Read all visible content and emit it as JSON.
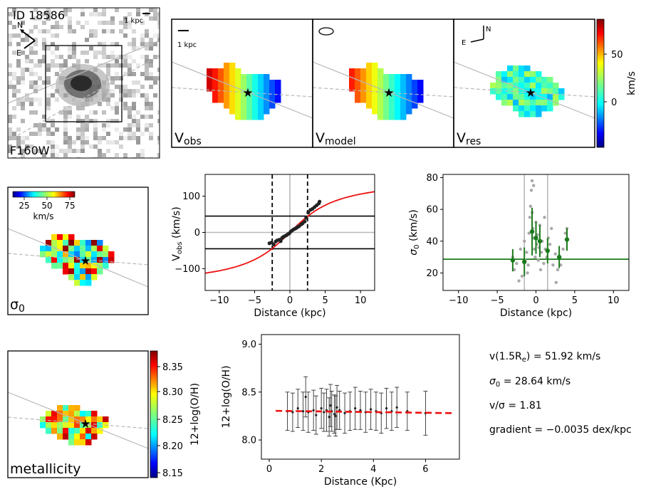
{
  "header": {
    "galaxy_id": "ID 18586",
    "filter_label": "F160W",
    "scale_label": "1 kpc",
    "compass_n": "N",
    "compass_e": "E"
  },
  "velocity_maps": {
    "obs_label_main": "V",
    "obs_label_sub": "obs",
    "model_label_main": "V",
    "model_label_sub": "model",
    "res_label_main": "V",
    "res_label_sub": "res",
    "scale_label": "1 kpc",
    "compass_n": "N",
    "compass_e": "E",
    "colorbar_unit": "km/s",
    "colorbar_ticks": [
      "50",
      "0"
    ]
  },
  "sigma_map": {
    "label_main": "σ",
    "label_sub": "0",
    "colorbar_ticks": [
      "25",
      "50",
      "75"
    ],
    "colorbar_unit": "km/s"
  },
  "metallicity_map": {
    "label": "metallicity",
    "colorbar_label": "12+log(O/H)",
    "colorbar_ticks": [
      "8.35",
      "8.30",
      "8.25",
      "8.20",
      "8.15"
    ]
  },
  "summary": {
    "v15re_main": "v(1.5R",
    "v15re_sub": "e",
    "v15re_value": ") = 51.92 km/s",
    "sigma_main": "σ",
    "sigma_sub": "0",
    "sigma_value": " = 28.64 km/s",
    "ratio": "v/σ = 1.81",
    "gradient": "gradient = −0.0035 dex/kpc"
  },
  "chart_data": [
    {
      "type": "scatter",
      "name": "rotation-curve",
      "xlabel": "Distance (kpc)",
      "ylabel_main": "V",
      "ylabel_sub": "obs",
      "ylabel_unit": " (km/s)",
      "xlim": [
        -12,
        12
      ],
      "ylim": [
        -160,
        160
      ],
      "xticks": [
        -10,
        -5,
        0,
        5,
        10
      ],
      "yticks": [
        -100,
        0,
        100
      ],
      "points": [
        [
          -2.9,
          -30
        ],
        [
          -2.6,
          -28
        ],
        [
          -2.3,
          -33
        ],
        [
          -2.0,
          -25
        ],
        [
          -1.8,
          -22
        ],
        [
          -1.5,
          -20
        ],
        [
          -1.3,
          -24
        ],
        [
          -1.1,
          -15
        ],
        [
          -0.9,
          -12
        ],
        [
          -0.7,
          -10
        ],
        [
          -0.5,
          -8
        ],
        [
          -0.3,
          -5
        ],
        [
          -0.1,
          -3
        ],
        [
          0.1,
          2
        ],
        [
          0.3,
          5
        ],
        [
          0.5,
          8
        ],
        [
          0.7,
          10
        ],
        [
          0.9,
          12
        ],
        [
          1.1,
          15
        ],
        [
          1.3,
          17
        ],
        [
          1.6,
          22
        ],
        [
          1.8,
          25
        ],
        [
          2.1,
          30
        ],
        [
          2.3,
          40
        ],
        [
          2.6,
          55
        ],
        [
          2.9,
          62
        ],
        [
          3.2,
          65
        ],
        [
          3.5,
          70
        ],
        [
          3.8,
          75
        ],
        [
          4.1,
          80
        ],
        [
          4.2,
          85
        ]
      ],
      "model_curve": {
        "vmax": 150,
        "rt": 5
      },
      "horizontal_lines": [
        45,
        -45,
        0
      ],
      "vertical_dashed": [
        -2.5,
        2.5
      ],
      "vertical_gray": [
        0
      ]
    },
    {
      "type": "scatter",
      "name": "dispersion-profile",
      "xlabel": "Distance (kpc)",
      "ylabel_main": "σ",
      "ylabel_sub": "0",
      "ylabel_unit": " (km/s)",
      "xlim": [
        -12,
        12
      ],
      "ylim": [
        9,
        82
      ],
      "xticks": [
        -10,
        -5,
        0,
        5,
        10
      ],
      "yticks": [
        20,
        40,
        60,
        80
      ],
      "mean_sigma": 28.64,
      "vertical_gray": [
        -1.5,
        1.5
      ],
      "gray_points": [
        [
          -3.0,
          30
        ],
        [
          -2.8,
          22
        ],
        [
          -2.5,
          26
        ],
        [
          -2.0,
          35
        ],
        [
          -1.8,
          18
        ],
        [
          -1.5,
          40
        ],
        [
          -1.4,
          28
        ],
        [
          -1.2,
          33
        ],
        [
          -1.0,
          25
        ],
        [
          -0.9,
          45
        ],
        [
          -0.8,
          55
        ],
        [
          -0.7,
          62
        ],
        [
          -0.6,
          72
        ],
        [
          -0.5,
          58
        ],
        [
          -0.4,
          48
        ],
        [
          -0.3,
          42
        ],
        [
          -0.2,
          35
        ],
        [
          -0.1,
          30
        ],
        [
          0.0,
          52
        ],
        [
          0.1,
          38
        ],
        [
          0.2,
          44
        ],
        [
          0.3,
          28
        ],
        [
          0.4,
          36
        ],
        [
          0.5,
          50
        ],
        [
          0.7,
          33
        ],
        [
          0.8,
          40
        ],
        [
          1.0,
          26
        ],
        [
          1.2,
          35
        ],
        [
          1.4,
          30
        ],
        [
          1.6,
          42
        ],
        [
          1.8,
          38
        ],
        [
          2.0,
          48
        ],
        [
          2.2,
          25
        ],
        [
          2.5,
          32
        ],
        [
          2.8,
          22
        ],
        [
          3.0,
          30
        ],
        [
          3.2,
          25
        ],
        [
          3.5,
          35
        ],
        [
          3.8,
          45
        ],
        [
          4.0,
          48
        ],
        [
          -0.5,
          78
        ],
        [
          -0.3,
          75
        ],
        [
          -2.2,
          15
        ],
        [
          2.6,
          14
        ],
        [
          -1.1,
          20
        ],
        [
          0.6,
          22
        ],
        [
          1.1,
          55
        ]
      ],
      "green_points": [
        {
          "x": -3.0,
          "y": 28,
          "err": 7
        },
        {
          "x": -1.5,
          "y": 27,
          "err": 9
        },
        {
          "x": -0.5,
          "y": 46,
          "err": 15
        },
        {
          "x": 0.0,
          "y": 42,
          "err": 10
        },
        {
          "x": 0.5,
          "y": 40,
          "err": 10
        },
        {
          "x": 1.5,
          "y": 34,
          "err": 8
        },
        {
          "x": 3.0,
          "y": 30,
          "err": 7
        },
        {
          "x": 4.0,
          "y": 41,
          "err": 7
        }
      ]
    },
    {
      "type": "scatter",
      "name": "metallicity-gradient",
      "xlabel": "Distance (Kpc)",
      "ylabel": "12+log(O/H)",
      "xlim": [
        -0.3,
        7.3
      ],
      "ylim": [
        7.8,
        9.1
      ],
      "xticks": [
        0,
        2,
        4,
        6
      ],
      "yticks": [
        8.0,
        8.5,
        9.0
      ],
      "ytick_labels": [
        "8.0",
        "8.5",
        "9.0"
      ],
      "fit": {
        "intercept": 8.305,
        "slope": -0.0035,
        "x0": 0.25,
        "x1": 7.0
      },
      "points": [
        {
          "x": 0.7,
          "y": 8.3,
          "err": 0.2
        },
        {
          "x": 0.9,
          "y": 8.29,
          "err": 0.2
        },
        {
          "x": 1.1,
          "y": 8.33,
          "err": 0.2
        },
        {
          "x": 1.3,
          "y": 8.3,
          "err": 0.2
        },
        {
          "x": 1.4,
          "y": 8.45,
          "err": 0.21
        },
        {
          "x": 1.5,
          "y": 8.29,
          "err": 0.21
        },
        {
          "x": 1.7,
          "y": 8.31,
          "err": 0.21
        },
        {
          "x": 1.8,
          "y": 8.26,
          "err": 0.2
        },
        {
          "x": 2.0,
          "y": 8.33,
          "err": 0.21
        },
        {
          "x": 2.1,
          "y": 8.29,
          "err": 0.2
        },
        {
          "x": 2.2,
          "y": 8.31,
          "err": 0.22
        },
        {
          "x": 2.3,
          "y": 8.24,
          "err": 0.2
        },
        {
          "x": 2.35,
          "y": 8.36,
          "err": 0.22
        },
        {
          "x": 2.4,
          "y": 8.3,
          "err": 0.21
        },
        {
          "x": 2.5,
          "y": 8.27,
          "err": 0.2
        },
        {
          "x": 2.55,
          "y": 8.25,
          "err": 0.21
        },
        {
          "x": 2.6,
          "y": 8.34,
          "err": 0.23
        },
        {
          "x": 2.7,
          "y": 8.31,
          "err": 0.2
        },
        {
          "x": 2.9,
          "y": 8.28,
          "err": 0.21
        },
        {
          "x": 3.1,
          "y": 8.3,
          "err": 0.2
        },
        {
          "x": 3.3,
          "y": 8.33,
          "err": 0.22
        },
        {
          "x": 3.5,
          "y": 8.31,
          "err": 0.2
        },
        {
          "x": 3.7,
          "y": 8.29,
          "err": 0.21
        },
        {
          "x": 3.9,
          "y": 8.32,
          "err": 0.21
        },
        {
          "x": 4.1,
          "y": 8.3,
          "err": 0.2
        },
        {
          "x": 4.3,
          "y": 8.28,
          "err": 0.21
        },
        {
          "x": 4.5,
          "y": 8.33,
          "err": 0.21
        },
        {
          "x": 4.7,
          "y": 8.3,
          "err": 0.2
        },
        {
          "x": 4.9,
          "y": 8.34,
          "err": 0.21
        },
        {
          "x": 5.3,
          "y": 8.3,
          "err": 0.2
        },
        {
          "x": 6.0,
          "y": 8.28,
          "err": 0.23
        }
      ]
    }
  ],
  "colors": {
    "model_line": "#ee1111",
    "green": "#1a7a1a",
    "gray_line": "#b8b8b8",
    "point": "#222222",
    "gray_point": "#a8a8a8"
  }
}
